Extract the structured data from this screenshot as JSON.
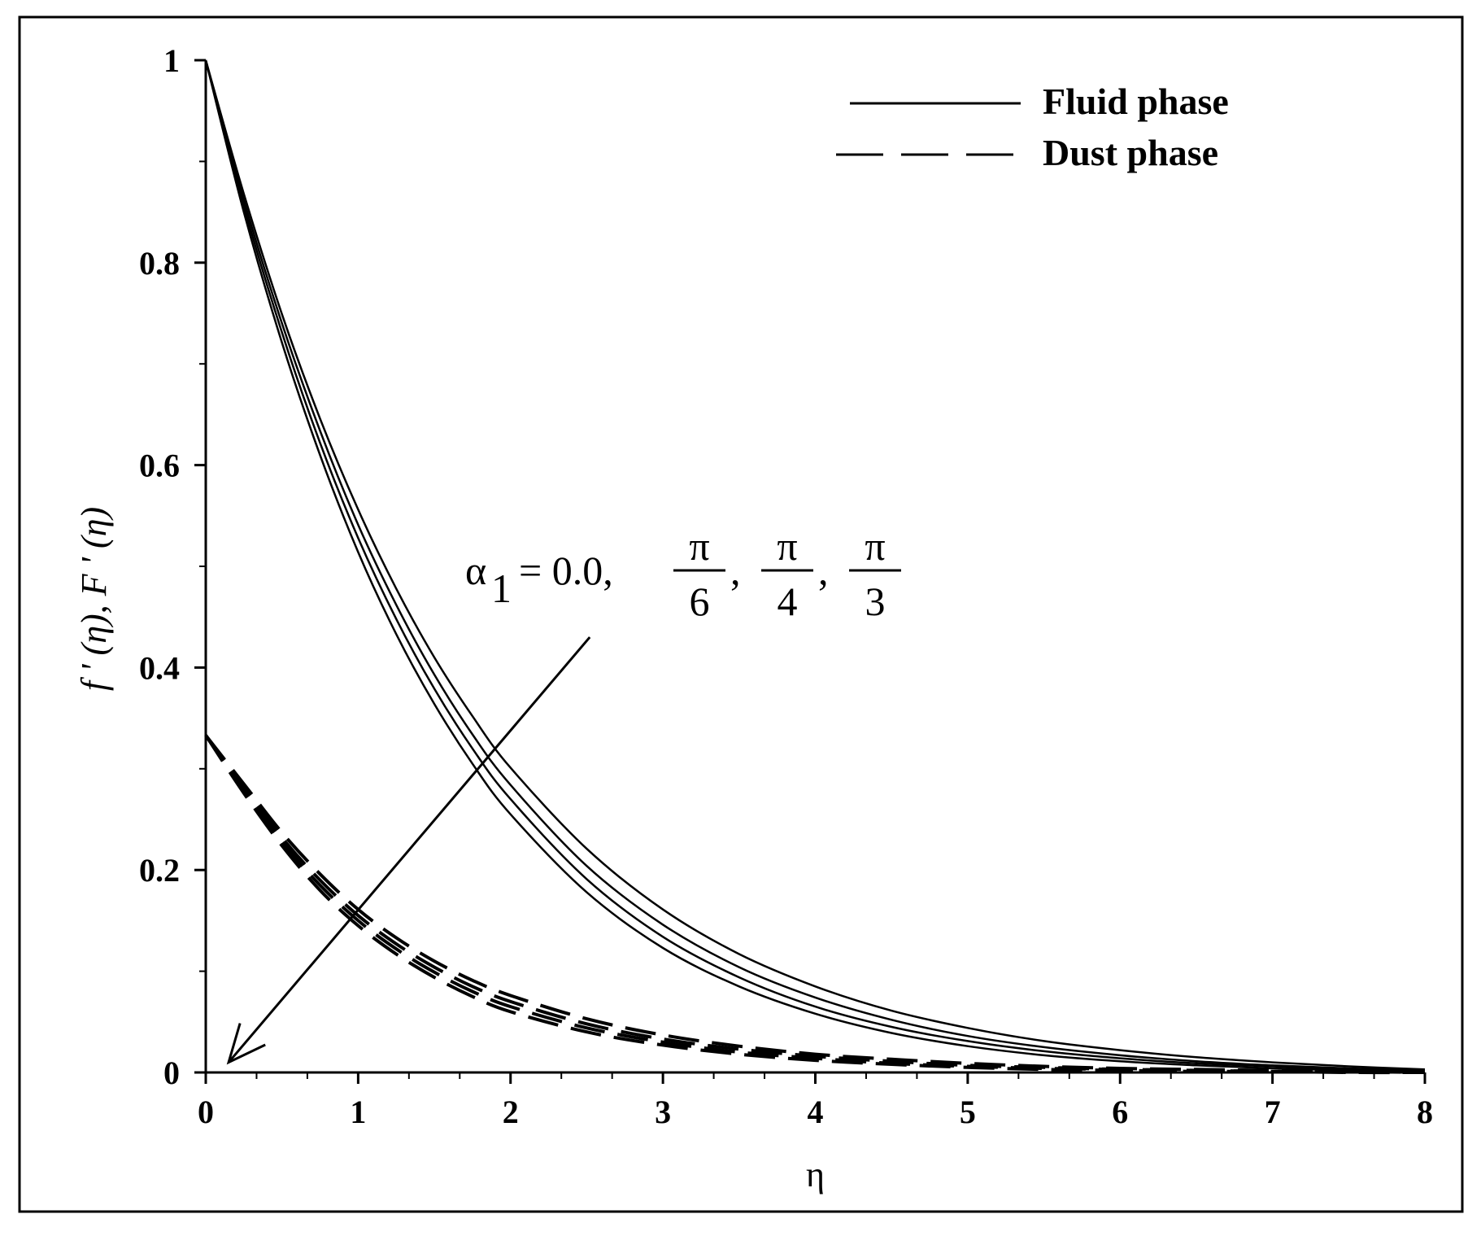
{
  "chart_data": {
    "type": "line",
    "xlabel": "η",
    "ylabel": "f ' (η), F ' (η)",
    "xlim": [
      0,
      8
    ],
    "ylim": [
      0,
      1
    ],
    "xticks": [
      "0",
      "1",
      "2",
      "3",
      "4",
      "5",
      "6",
      "7",
      "8"
    ],
    "yticks": [
      "0",
      "0.2",
      "0.4",
      "0.6",
      "0.8",
      "1"
    ],
    "grid": false,
    "legend": {
      "position": "top-right",
      "entries": [
        {
          "label": "Fluid phase",
          "style": "solid"
        },
        {
          "label": "Dust phase",
          "style": "dashed"
        }
      ]
    },
    "annotation": {
      "lhs": "α",
      "subscript": "1",
      "eq": "= 0.0,",
      "fractions": [
        {
          "num": "π",
          "den": "6"
        },
        {
          "num": "π",
          "den": "4"
        },
        {
          "num": "π",
          "den": "3"
        }
      ],
      "arrow_from": [
        2.52,
        0.43
      ],
      "arrow_to": [
        0.15,
        0.01
      ]
    },
    "x": [
      0,
      0.25,
      0.5,
      0.75,
      1,
      1.25,
      1.5,
      1.75,
      2,
      2.5,
      3,
      3.5,
      4,
      4.5,
      5,
      5.5,
      6,
      6.5,
      7,
      7.5,
      8
    ],
    "series": [
      {
        "style": "solid",
        "values": [
          1.0,
          0.868,
          0.749,
          0.646,
          0.556,
          0.478,
          0.41,
          0.352,
          0.301,
          0.221,
          0.161,
          0.117,
          0.085,
          0.061,
          0.044,
          0.031,
          0.022,
          0.015,
          0.01,
          0.006,
          0.003
        ]
      },
      {
        "style": "solid",
        "values": [
          1.0,
          0.862,
          0.74,
          0.634,
          0.541,
          0.462,
          0.393,
          0.334,
          0.284,
          0.204,
          0.146,
          0.104,
          0.074,
          0.052,
          0.036,
          0.025,
          0.017,
          0.011,
          0.007,
          0.004,
          0.002
        ]
      },
      {
        "style": "solid",
        "values": [
          1.0,
          0.856,
          0.731,
          0.622,
          0.528,
          0.448,
          0.379,
          0.32,
          0.27,
          0.191,
          0.134,
          0.094,
          0.065,
          0.045,
          0.031,
          0.021,
          0.014,
          0.009,
          0.006,
          0.003,
          0.002
        ]
      },
      {
        "style": "solid",
        "values": [
          1.0,
          0.85,
          0.721,
          0.61,
          0.514,
          0.433,
          0.364,
          0.305,
          0.255,
          0.178,
          0.123,
          0.085,
          0.058,
          0.039,
          0.026,
          0.017,
          0.011,
          0.007,
          0.004,
          0.002,
          0.001
        ]
      },
      {
        "style": "dashed",
        "values": [
          0.333,
          0.285,
          0.237,
          0.196,
          0.161,
          0.133,
          0.11,
          0.091,
          0.076,
          0.053,
          0.037,
          0.026,
          0.018,
          0.013,
          0.009,
          0.006,
          0.004,
          0.003,
          0.002,
          0.001,
          0.0
        ]
      },
      {
        "style": "dashed",
        "values": [
          0.333,
          0.282,
          0.232,
          0.19,
          0.155,
          0.127,
          0.104,
          0.085,
          0.07,
          0.048,
          0.033,
          0.023,
          0.016,
          0.011,
          0.007,
          0.005,
          0.003,
          0.002,
          0.001,
          0.001,
          0.0
        ]
      },
      {
        "style": "dashed",
        "values": [
          0.333,
          0.279,
          0.228,
          0.185,
          0.15,
          0.122,
          0.099,
          0.08,
          0.065,
          0.044,
          0.03,
          0.02,
          0.014,
          0.009,
          0.006,
          0.004,
          0.003,
          0.002,
          0.001,
          0.001,
          0.0
        ]
      },
      {
        "style": "dashed",
        "values": [
          0.333,
          0.276,
          0.224,
          0.18,
          0.145,
          0.117,
          0.094,
          0.075,
          0.06,
          0.04,
          0.027,
          0.018,
          0.012,
          0.008,
          0.005,
          0.003,
          0.002,
          0.001,
          0.001,
          0.0,
          0.0
        ]
      }
    ]
  }
}
